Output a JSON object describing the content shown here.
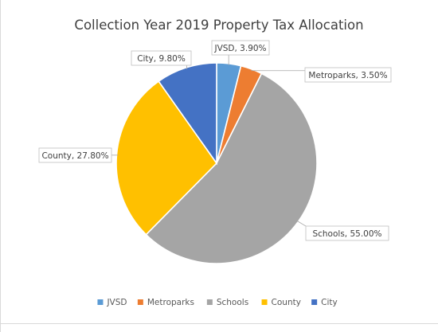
{
  "chart_data": {
    "type": "pie",
    "title": "Collection Year 2019 Property Tax Allocation",
    "categories": [
      "JVSD",
      "Metroparks",
      "Schools",
      "County",
      "City"
    ],
    "values": [
      3.9,
      3.5,
      55.0,
      27.8,
      9.8
    ],
    "labels": [
      "JVSD, 3.90%",
      "Metroparks, 3.50%",
      "Schools, 55.00%",
      "County, 27.80%",
      "City, 9.80%"
    ],
    "colors": [
      "#5b9bd5",
      "#ed7d31",
      "#a5a5a5",
      "#ffc000",
      "#4472c4"
    ],
    "legend_position": "bottom",
    "grid": false
  }
}
